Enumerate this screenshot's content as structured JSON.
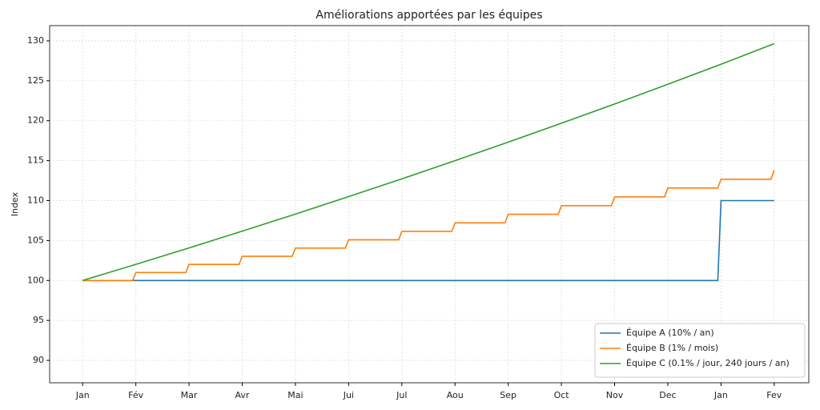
{
  "chart_data": {
    "type": "line",
    "title": "Améliorations apportées par les équipes",
    "y_label": "Index",
    "xlim": [
      -0.62,
      13.65
    ],
    "ylim": [
      87.2,
      131.9
    ],
    "xticks": [
      {
        "value": 0,
        "label": "Jan"
      },
      {
        "value": 1,
        "label": "Fév"
      },
      {
        "value": 2,
        "label": "Mar"
      },
      {
        "value": 3,
        "label": "Avr"
      },
      {
        "value": 4,
        "label": "Mai"
      },
      {
        "value": 5,
        "label": "Jui"
      },
      {
        "value": 6,
        "label": "Jul"
      },
      {
        "value": 7,
        "label": "Aou"
      },
      {
        "value": 8,
        "label": "Sep"
      },
      {
        "value": 9,
        "label": "Oct"
      },
      {
        "value": 10,
        "label": "Nov"
      },
      {
        "value": 11,
        "label": "Dec"
      },
      {
        "value": 12,
        "label": "Jan"
      },
      {
        "value": 13,
        "label": "Fev"
      }
    ],
    "yticks": [
      90,
      95,
      100,
      105,
      110,
      115,
      120,
      125,
      130
    ],
    "grid": true,
    "legend": "lower right",
    "series": [
      {
        "name": "Équipe A (10% / an)",
        "color": "#1f77b4",
        "x": [
          0,
          11.94,
          12,
          13
        ],
        "values": [
          100,
          100,
          110,
          110
        ]
      },
      {
        "name": "Équipe B (1% / mois)",
        "color": "#ff7f0e",
        "x": [
          0,
          0.94,
          1,
          1.94,
          2,
          2.94,
          3,
          3.94,
          4,
          4.94,
          5,
          5.94,
          6,
          6.94,
          7,
          7.94,
          8,
          8.94,
          9,
          9.94,
          10,
          10.94,
          11,
          11.94,
          12,
          12.94,
          13
        ],
        "values": [
          100,
          100,
          101,
          101,
          102.01,
          102.01,
          103.03,
          103.03,
          104.06,
          104.06,
          105.1,
          105.1,
          106.15,
          106.15,
          107.21,
          107.21,
          108.29,
          108.29,
          109.37,
          109.37,
          110.46,
          110.46,
          111.57,
          111.57,
          112.68,
          112.68,
          113.81
        ]
      },
      {
        "name": "Équipe C (0.1% / jour, 240 jours / an)",
        "color": "#2ca02c",
        "x": [
          0,
          1,
          2,
          3,
          4,
          5,
          6,
          7,
          8,
          9,
          10,
          11,
          12,
          13
        ],
        "values": [
          100,
          102.02,
          104.08,
          106.18,
          108.31,
          110.5,
          112.72,
          115.0,
          117.32,
          119.68,
          122.09,
          124.56,
          127.07,
          129.64
        ]
      }
    ]
  }
}
